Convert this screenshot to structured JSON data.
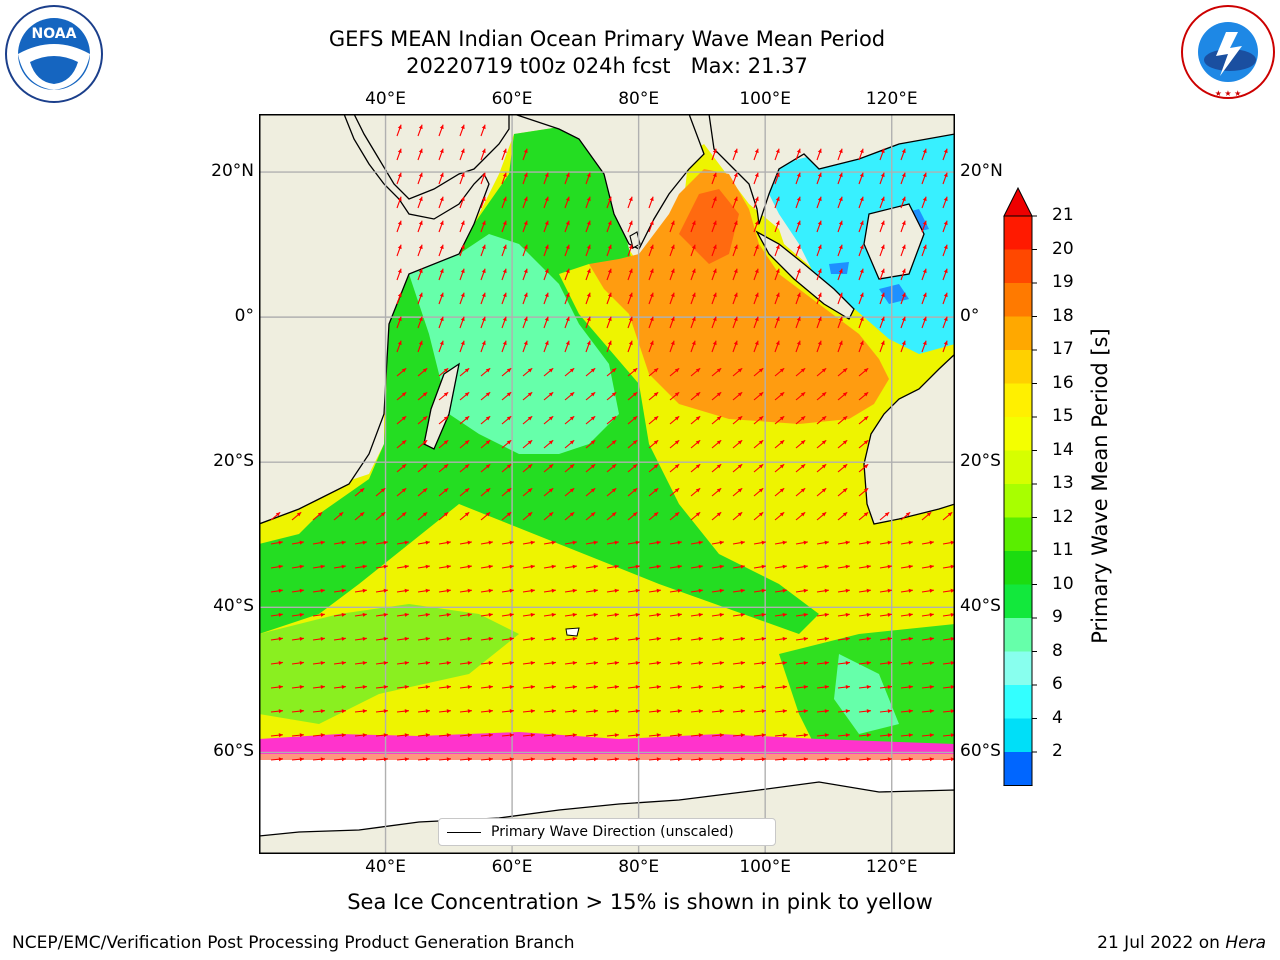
{
  "title": {
    "line1": "GEFS MEAN Indian Ocean Primary Wave Mean Period",
    "line2": "20220719 t00z 024h fcst   Max: 21.37"
  },
  "logos": {
    "noaa": "NOAA",
    "noaa_ring": "NATIONAL OCEANIC AND ATMOSPHERIC ADMINISTRATION · U.S. DEPARTMENT OF COMMERCE",
    "nws_ring": "NATIONAL WEATHER SERVICE"
  },
  "map": {
    "lon_ticks": [
      "40°E",
      "60°E",
      "80°E",
      "100°E",
      "120°E"
    ],
    "lat_ticks": [
      "20°N",
      "0°",
      "20°S",
      "40°S",
      "60°S"
    ],
    "lon_values": [
      40,
      60,
      80,
      100,
      120
    ],
    "lat_values": [
      20,
      0,
      -20,
      -40,
      -60
    ],
    "extent": {
      "lon_min": 20,
      "lon_max": 130,
      "lat_min": -74,
      "lat_max": 28
    },
    "land_color": "#efeedf",
    "ice_color": "#ff33cc",
    "arrow_color": "#ff0000"
  },
  "legend": {
    "label": "Primary Wave Direction (unscaled)"
  },
  "colorbar": {
    "title": "Primary Wave Mean Period [s]",
    "ticks": [
      "21",
      "20",
      "19",
      "18",
      "17",
      "16",
      "15",
      "14",
      "13",
      "12",
      "11",
      "10",
      "9",
      "8",
      "6",
      "4",
      "2"
    ],
    "colors": [
      "#ff1a00",
      "#ff4800",
      "#ff7a00",
      "#ffa800",
      "#ffd000",
      "#fff000",
      "#f4ff00",
      "#d6ff00",
      "#a8ff00",
      "#5aee00",
      "#1cdc10",
      "#12e83c",
      "#66ffaa",
      "#88ffee",
      "#33ffff",
      "#00dff8",
      "#0066ff"
    ],
    "under_color": "#0000ff",
    "over_color": "#ee0000"
  },
  "note": "Sea Ice Concentration > 15% is shown in pink to yellow",
  "footer": {
    "left": "NCEP/EMC/Verification Post Processing Product Generation Branch",
    "date": "21 Jul 2022 on ",
    "machine": "Hera"
  }
}
